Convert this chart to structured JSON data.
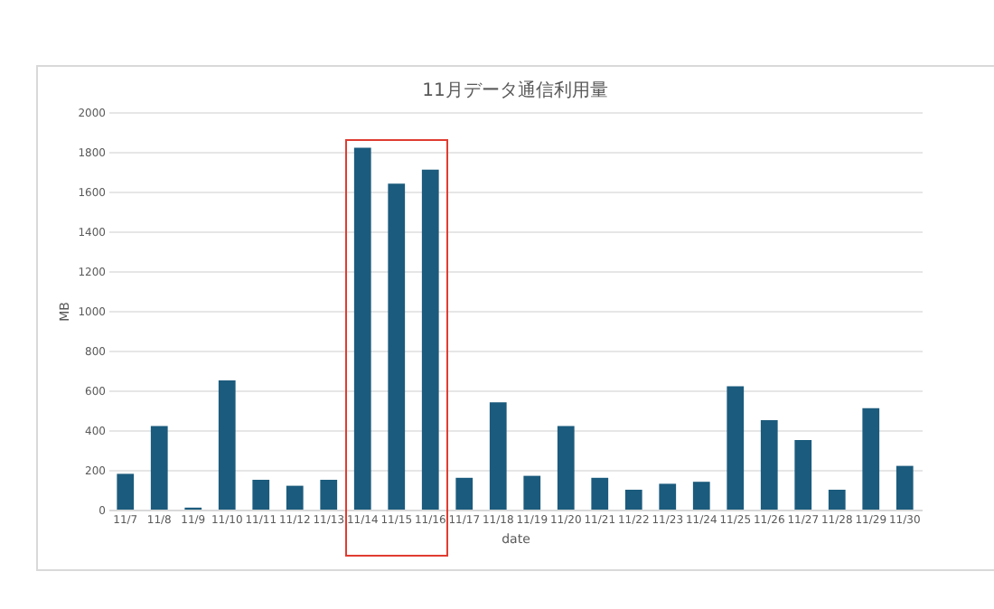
{
  "chart_data": {
    "type": "bar",
    "title": "11月データ通信利用量",
    "xlabel": "date",
    "ylabel": "MB",
    "categories": [
      "11/7",
      "11/8",
      "11/9",
      "11/10",
      "11/11",
      "11/12",
      "11/13",
      "11/14",
      "11/15",
      "11/16",
      "11/17",
      "11/18",
      "11/19",
      "11/20",
      "11/21",
      "11/22",
      "11/23",
      "11/24",
      "11/25",
      "11/26",
      "11/27",
      "11/28",
      "11/29",
      "11/30"
    ],
    "values": [
      180,
      420,
      10,
      650,
      150,
      120,
      150,
      1820,
      1640,
      1710,
      160,
      540,
      170,
      420,
      160,
      100,
      130,
      140,
      620,
      450,
      350,
      100,
      510,
      220
    ],
    "color": "#1b5b7d",
    "ylim": [
      0,
      2000
    ],
    "yticks": [
      0,
      200,
      400,
      600,
      800,
      1000,
      1200,
      1400,
      1600,
      1800,
      2000
    ],
    "grid": "y"
  }
}
